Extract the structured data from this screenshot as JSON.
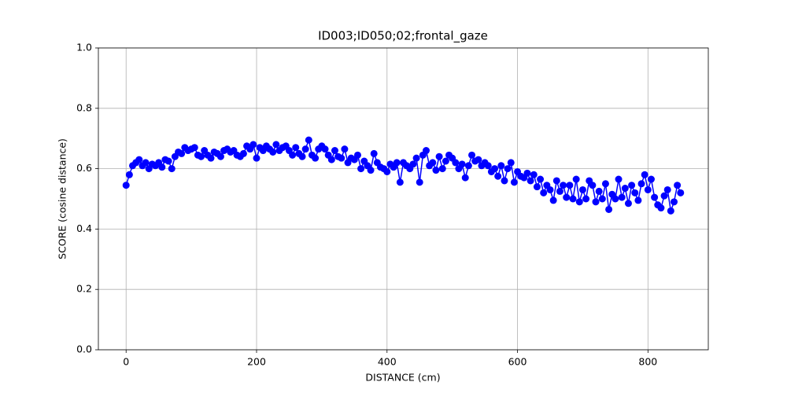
{
  "chart_data": {
    "type": "line",
    "title": "ID003;ID050;02;frontal_gaze",
    "xlabel": "DISTANCE (cm)",
    "ylabel": "SCORE (cosine distance)",
    "xlim": [
      -42.5,
      892.5
    ],
    "xticks": [
      0,
      200,
      400,
      600,
      800
    ],
    "ylim": [
      0,
      1
    ],
    "yticks": [
      {
        "value": 0,
        "label": "0.0"
      },
      0.2,
      0.4,
      0.6,
      0.8,
      {
        "value": 1,
        "label": "1.0"
      }
    ],
    "grid": true,
    "markers": true,
    "series": [
      {
        "color": "#0000ff",
        "x": [
          0,
          5,
          10,
          15,
          20,
          25,
          30,
          35,
          40,
          45,
          50,
          55,
          60,
          65,
          70,
          75,
          80,
          85,
          90,
          95,
          100,
          105,
          110,
          115,
          120,
          125,
          130,
          135,
          140,
          145,
          150,
          155,
          160,
          165,
          170,
          175,
          180,
          185,
          190,
          195,
          200,
          205,
          210,
          215,
          220,
          225,
          230,
          235,
          240,
          245,
          250,
          255,
          260,
          265,
          270,
          275,
          280,
          285,
          290,
          295,
          300,
          305,
          310,
          315,
          320,
          325,
          330,
          335,
          340,
          345,
          350,
          355,
          360,
          365,
          370,
          375,
          380,
          385,
          390,
          395,
          400,
          405,
          410,
          415,
          420,
          425,
          430,
          435,
          440,
          445,
          450,
          455,
          460,
          465,
          470,
          475,
          480,
          485,
          490,
          495,
          500,
          505,
          510,
          515,
          520,
          525,
          530,
          535,
          540,
          545,
          550,
          555,
          560,
          565,
          570,
          575,
          580,
          585,
          590,
          595,
          600,
          605,
          610,
          615,
          620,
          625,
          630,
          635,
          640,
          645,
          650,
          655,
          660,
          665,
          670,
          675,
          680,
          685,
          690,
          695,
          700,
          705,
          710,
          715,
          720,
          725,
          730,
          735,
          740,
          745,
          750,
          755,
          760,
          765,
          770,
          775,
          780,
          785,
          790,
          795,
          800,
          805,
          810,
          815,
          820,
          825,
          830,
          835,
          840,
          845,
          850
        ],
        "values": [
          0.545,
          0.58,
          0.61,
          0.62,
          0.63,
          0.61,
          0.62,
          0.6,
          0.615,
          0.61,
          0.62,
          0.605,
          0.63,
          0.625,
          0.6,
          0.64,
          0.655,
          0.65,
          0.67,
          0.66,
          0.665,
          0.67,
          0.645,
          0.64,
          0.66,
          0.645,
          0.635,
          0.655,
          0.65,
          0.64,
          0.66,
          0.665,
          0.655,
          0.66,
          0.645,
          0.64,
          0.65,
          0.675,
          0.665,
          0.68,
          0.635,
          0.67,
          0.66,
          0.675,
          0.665,
          0.655,
          0.68,
          0.66,
          0.67,
          0.675,
          0.66,
          0.645,
          0.67,
          0.65,
          0.64,
          0.665,
          0.695,
          0.645,
          0.635,
          0.665,
          0.675,
          0.665,
          0.645,
          0.63,
          0.66,
          0.64,
          0.635,
          0.665,
          0.62,
          0.635,
          0.63,
          0.645,
          0.6,
          0.625,
          0.61,
          0.595,
          0.65,
          0.62,
          0.605,
          0.6,
          0.59,
          0.615,
          0.605,
          0.62,
          0.555,
          0.62,
          0.61,
          0.6,
          0.615,
          0.635,
          0.555,
          0.645,
          0.66,
          0.61,
          0.62,
          0.595,
          0.64,
          0.6,
          0.625,
          0.645,
          0.635,
          0.62,
          0.6,
          0.615,
          0.57,
          0.61,
          0.645,
          0.625,
          0.63,
          0.61,
          0.62,
          0.61,
          0.59,
          0.6,
          0.575,
          0.61,
          0.56,
          0.6,
          0.62,
          0.555,
          0.59,
          0.575,
          0.57,
          0.585,
          0.56,
          0.58,
          0.54,
          0.565,
          0.52,
          0.545,
          0.53,
          0.495,
          0.56,
          0.525,
          0.545,
          0.505,
          0.545,
          0.5,
          0.565,
          0.49,
          0.53,
          0.5,
          0.56,
          0.545,
          0.49,
          0.525,
          0.5,
          0.55,
          0.465,
          0.515,
          0.5,
          0.565,
          0.505,
          0.535,
          0.485,
          0.545,
          0.52,
          0.495,
          0.55,
          0.58,
          0.53,
          0.565,
          0.505,
          0.48,
          0.47,
          0.51,
          0.53,
          0.46,
          0.49,
          0.545,
          0.52
        ]
      }
    ]
  }
}
